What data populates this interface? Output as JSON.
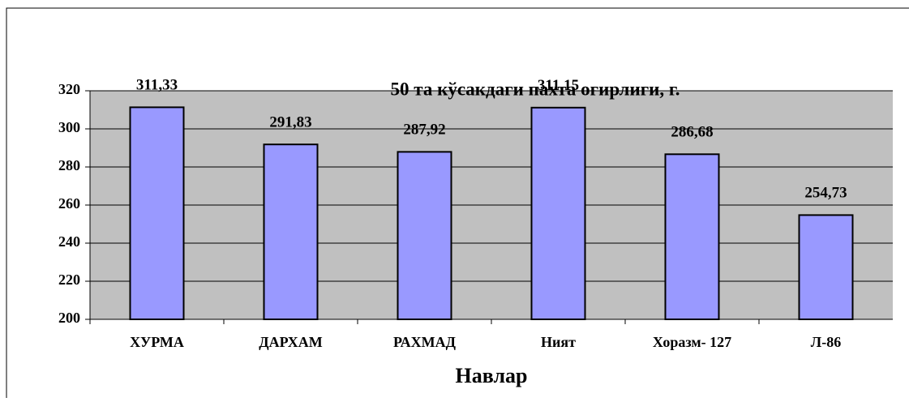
{
  "chart_data": {
    "type": "bar",
    "title": "50 та кўсакдаги пахта оғирлиги, г.",
    "x_label": "Навлар",
    "categories": [
      "ХУРМА",
      "ДАРХАМ",
      "РАХМАД",
      "Ният",
      "Хоразм- 127",
      "Л-86"
    ],
    "values": [
      311.33,
      291.83,
      287.92,
      311.15,
      286.68,
      254.73
    ],
    "value_labels": [
      "311,33",
      "291,83",
      "287,92",
      "311,15",
      "286,68",
      "254,73"
    ],
    "color": "#9999ff",
    "ylim": [
      200,
      320
    ],
    "yticks": [
      200,
      220,
      240,
      260,
      280,
      300,
      320
    ],
    "grid": true
  }
}
